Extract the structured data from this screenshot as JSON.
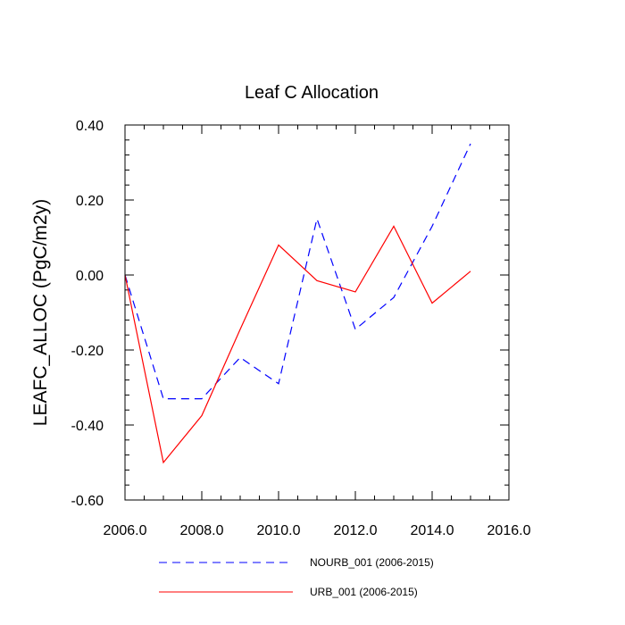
{
  "chart_data": {
    "type": "line",
    "title": "Leaf C Allocation",
    "xlabel": "",
    "ylabel": "LEAFC_ALLOC  (PgC/m2y)",
    "xlim": [
      2006.0,
      2016.0
    ],
    "ylim": [
      -0.6,
      0.4
    ],
    "x_ticks": [
      2006.0,
      2008.0,
      2010.0,
      2012.0,
      2014.0,
      2016.0
    ],
    "x_tick_labels": [
      "2006.0",
      "2008.0",
      "2010.0",
      "2012.0",
      "2014.0",
      "2016.0"
    ],
    "y_ticks": [
      0.4,
      0.2,
      0.0,
      -0.2,
      -0.4,
      -0.6
    ],
    "y_tick_labels": [
      "0.40",
      "0.20",
      "0.00",
      "-0.20",
      "-0.40",
      "-0.60"
    ],
    "grid": false,
    "legend_position": "bottom",
    "x": [
      2006,
      2007,
      2008,
      2009,
      2010,
      2011,
      2012,
      2013,
      2014,
      2015
    ],
    "series": [
      {
        "name": "NOURB_001 (2006-2015)",
        "color": "#0000ff",
        "style": "dashed",
        "values": [
          0.0,
          -0.33,
          -0.33,
          -0.22,
          -0.29,
          0.15,
          -0.145,
          -0.06,
          0.13,
          0.35
        ]
      },
      {
        "name": "URB_001 (2006-2015)",
        "color": "#ff0000",
        "style": "solid",
        "values": [
          0.0,
          -0.5,
          -0.375,
          -0.145,
          0.08,
          -0.015,
          -0.045,
          0.13,
          -0.075,
          0.01
        ]
      }
    ]
  }
}
